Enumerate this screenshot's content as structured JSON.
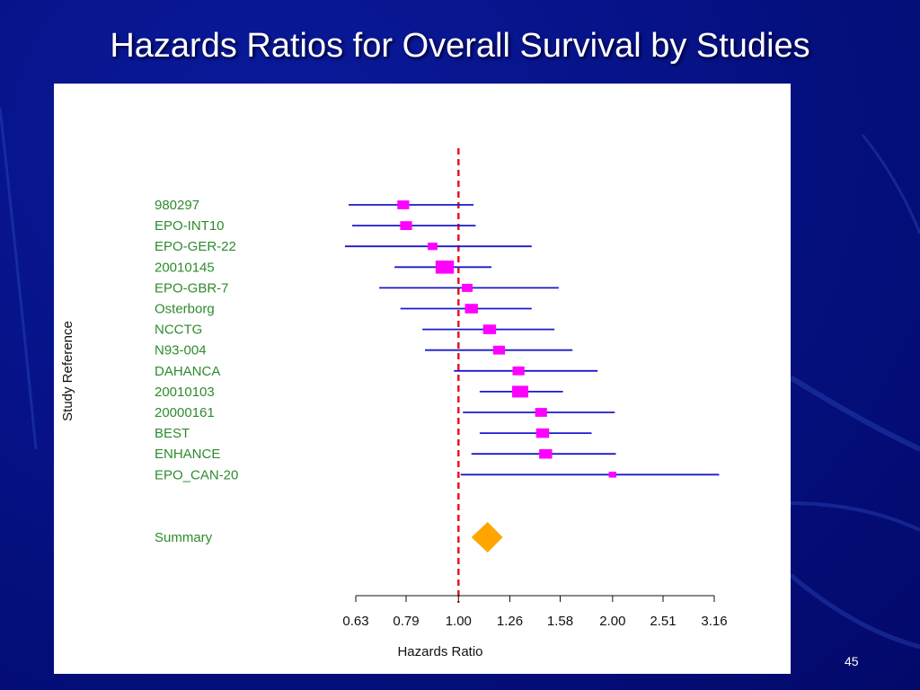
{
  "slide": {
    "title": "Hazards Ratios for Overall Survival by Studies",
    "page_number": "45"
  },
  "colors": {
    "background": "#061389",
    "ci_line": "#1a1acc",
    "point": "#ff00ff",
    "summary": "#ffa500",
    "reference_line": "#e8141e",
    "label": "#2e8b2e"
  },
  "chart_data": {
    "type": "forest",
    "xlabel": "Hazards Ratio",
    "ylabel": "Study Reference",
    "x_ticks": [
      0.63,
      0.79,
      1.0,
      1.26,
      1.58,
      2.0,
      2.51,
      3.16
    ],
    "x_tick_labels": [
      "0.63",
      "0.79",
      "1.00",
      "1.26",
      "1.58",
      "2.00",
      "2.51",
      "3.16"
    ],
    "x_scale": "log",
    "xlim": [
      0.63,
      3.16
    ],
    "reference_line": 1.0,
    "studies": [
      {
        "label": "980297",
        "hr": 0.78,
        "lower": 0.61,
        "upper": 1.07,
        "weight": 3
      },
      {
        "label": "EPO-INT10",
        "hr": 0.79,
        "lower": 0.62,
        "upper": 1.08,
        "weight": 3
      },
      {
        "label": "EPO-GER-22",
        "hr": 0.89,
        "lower": 0.6,
        "upper": 1.39,
        "weight": 2
      },
      {
        "label": "20010145",
        "hr": 0.94,
        "lower": 0.75,
        "upper": 1.16,
        "weight": 6
      },
      {
        "label": "EPO-GBR-7",
        "hr": 1.04,
        "lower": 0.7,
        "upper": 1.57,
        "weight": 2.5
      },
      {
        "label": "Osterborg",
        "hr": 1.06,
        "lower": 0.77,
        "upper": 1.39,
        "weight": 3.5
      },
      {
        "label": "NCCTG",
        "hr": 1.15,
        "lower": 0.85,
        "upper": 1.54,
        "weight": 3.5
      },
      {
        "label": "N93-004",
        "hr": 1.2,
        "lower": 0.86,
        "upper": 1.67,
        "weight": 3
      },
      {
        "label": "DAHANCA",
        "hr": 1.31,
        "lower": 0.98,
        "upper": 1.87,
        "weight": 3
      },
      {
        "label": "20010103",
        "hr": 1.32,
        "lower": 1.1,
        "upper": 1.6,
        "weight": 5
      },
      {
        "label": "20000161",
        "hr": 1.45,
        "lower": 1.02,
        "upper": 2.02,
        "weight": 3
      },
      {
        "label": "BEST",
        "hr": 1.46,
        "lower": 1.1,
        "upper": 1.82,
        "weight": 3.5
      },
      {
        "label": "ENHANCE",
        "hr": 1.48,
        "lower": 1.06,
        "upper": 2.03,
        "weight": 3.5
      },
      {
        "label": "EPO_CAN-20",
        "hr": 2.0,
        "lower": 1.01,
        "upper": 3.23,
        "weight": 1
      }
    ],
    "summary": {
      "label": "Summary",
      "hr": 1.14,
      "lower": 1.06,
      "upper": 1.22
    }
  }
}
